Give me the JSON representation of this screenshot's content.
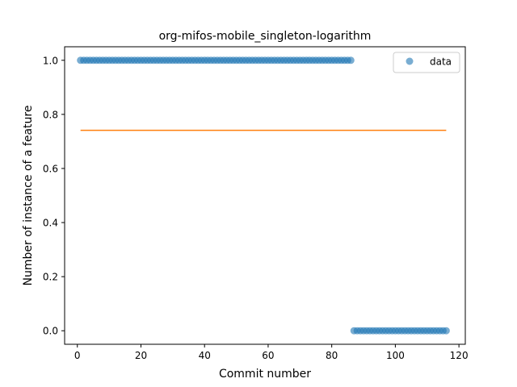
{
  "chart_data": {
    "type": "scatter",
    "title": "org-mifos-mobile_singleton-logarithm",
    "xlabel": "Commit number",
    "ylabel": "Number of instance of a feature",
    "xlim": [
      -4,
      122
    ],
    "ylim": [
      -0.05,
      1.05
    ],
    "xticks": [
      0,
      20,
      40,
      60,
      80,
      100,
      120
    ],
    "yticks": [
      0.0,
      0.2,
      0.4,
      0.6,
      0.8,
      1.0
    ],
    "grid": false,
    "legend_position": "upper-right",
    "series": [
      {
        "name": "data",
        "kind": "scatter",
        "color": "#1f77b4",
        "segments": [
          {
            "x_from": 1,
            "x_to": 86,
            "y": 1.0
          },
          {
            "x_from": 87,
            "x_to": 116,
            "y": 0.0
          }
        ]
      },
      {
        "kind": "line",
        "color": "#ff7f0e",
        "x": [
          1,
          116
        ],
        "y": [
          0.741,
          0.741
        ]
      }
    ]
  }
}
